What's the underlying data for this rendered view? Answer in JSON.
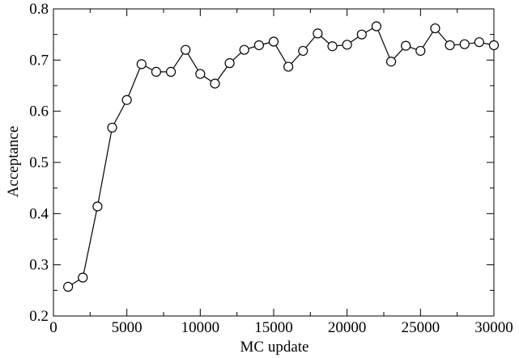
{
  "chart_data": {
    "type": "line",
    "title": "",
    "xlabel": "MC update",
    "ylabel": "Acceptance",
    "xlim": [
      0,
      30000
    ],
    "ylim": [
      0.2,
      0.8
    ],
    "xticks": [
      0,
      5000,
      10000,
      15000,
      20000,
      25000,
      30000
    ],
    "yticks": [
      0.2,
      0.3,
      0.4,
      0.5,
      0.6,
      0.7,
      0.8
    ],
    "xtick_labels": [
      "0",
      "5000",
      "10000",
      "15000",
      "20000",
      "25000",
      "30000"
    ],
    "ytick_labels": [
      "0.2",
      "0.3",
      "0.4",
      "0.5",
      "0.6",
      "0.7",
      "0.8"
    ],
    "grid": false,
    "marker": "open-circle",
    "line_color": "#000000",
    "series": [
      {
        "x": [
          1000,
          2000,
          3000,
          4000,
          5000,
          6000,
          7000,
          8000,
          9000,
          10000,
          11000,
          12000,
          13000,
          14000,
          15000,
          16000,
          17000,
          18000,
          19000,
          20000,
          21000,
          22000,
          23000,
          24000,
          25000,
          26000,
          27000,
          28000,
          29000,
          30000
        ],
        "y": [
          0.257,
          0.275,
          0.414,
          0.568,
          0.622,
          0.692,
          0.677,
          0.677,
          0.72,
          0.673,
          0.654,
          0.694,
          0.72,
          0.729,
          0.736,
          0.687,
          0.718,
          0.752,
          0.727,
          0.73,
          0.75,
          0.766,
          0.697,
          0.728,
          0.718,
          0.762,
          0.729,
          0.731,
          0.735,
          0.729
        ]
      }
    ]
  }
}
